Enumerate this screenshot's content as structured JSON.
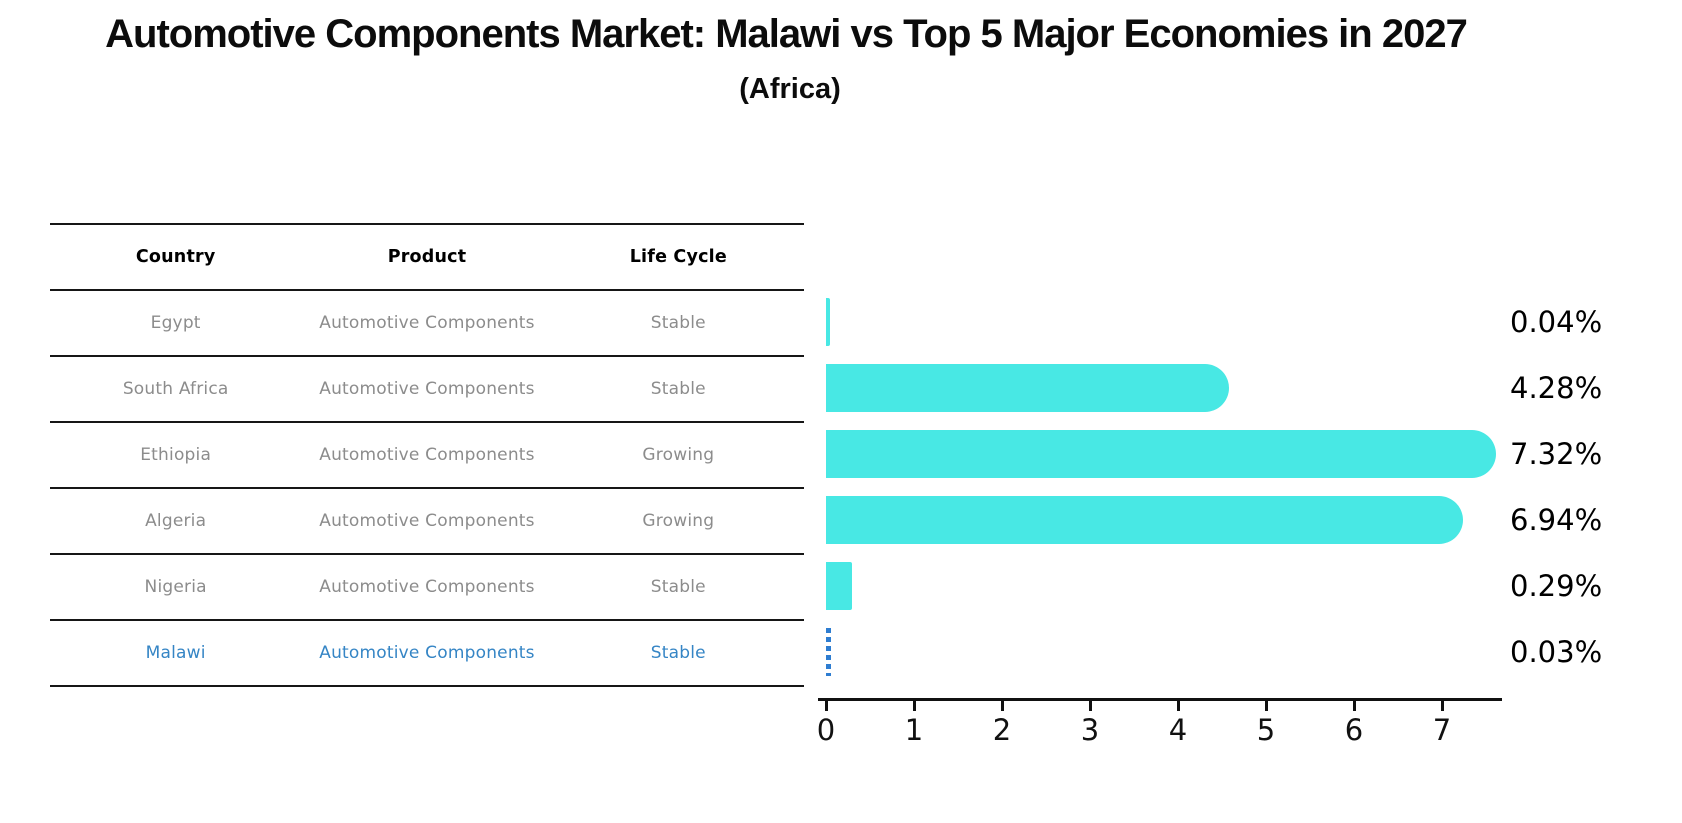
{
  "title": "Automotive Components Market: Malawi vs Top 5 Major Economies in 2027",
  "subtitle": "(Africa)",
  "table": {
    "headers": [
      "Country",
      "Product",
      "Life Cycle"
    ],
    "rows": [
      {
        "country": "Egypt",
        "product": "Automotive Components",
        "life_cycle": "Stable",
        "highlight": false
      },
      {
        "country": "South Africa",
        "product": "Automotive Components",
        "life_cycle": "Stable",
        "highlight": false
      },
      {
        "country": "Ethiopia",
        "product": "Automotive Components",
        "life_cycle": "Growing",
        "highlight": false
      },
      {
        "country": "Algeria",
        "product": "Automotive Components",
        "life_cycle": "Growing",
        "highlight": false
      },
      {
        "country": "Nigeria",
        "product": "Automotive Components",
        "life_cycle": "Stable",
        "highlight": false
      },
      {
        "country": "Malawi",
        "product": "Automotive Components",
        "life_cycle": "Stable",
        "highlight": true
      }
    ]
  },
  "chart_data": {
    "type": "bar",
    "orientation": "horizontal",
    "title": "Automotive Components Market: Malawi vs Top 5 Major Economies in 2027",
    "subtitle": "(Africa)",
    "categories": [
      "Egypt",
      "South Africa",
      "Ethiopia",
      "Algeria",
      "Nigeria",
      "Malawi"
    ],
    "values": [
      0.04,
      4.28,
      7.32,
      6.94,
      0.29,
      0.03
    ],
    "value_labels": [
      "0.04%",
      "4.28%",
      "7.32%",
      "6.94%",
      "0.29%",
      "0.03%"
    ],
    "x_tick_labels": [
      "0",
      "1",
      "2",
      "3",
      "4",
      "5",
      "6",
      "7"
    ],
    "xlim": [
      0,
      7.7
    ],
    "grid": false,
    "legend": "none",
    "highlight_index": 5,
    "bar_color": "#48e8e4",
    "highlight_bar_color": "#2e7dd1",
    "highlight_text_color": "#3585c5",
    "axis_color": "#111111",
    "table_text_color": "#8c8c8c"
  }
}
